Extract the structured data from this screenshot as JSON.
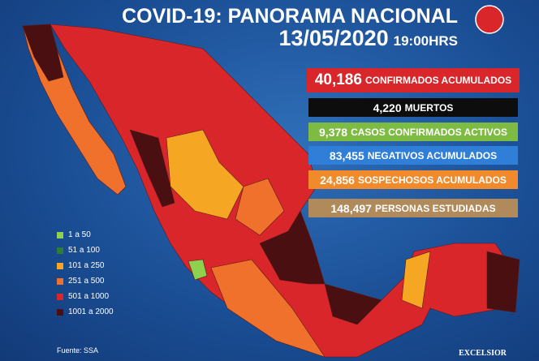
{
  "header": {
    "title": "COVID-19: PANORAMA NACIONAL",
    "date": "13/05/2020",
    "time": "19:00HRS"
  },
  "stats": [
    {
      "value": "40,186",
      "label": "CONFIRMADOS ACUMULADOS"
    },
    {
      "value": "4,220",
      "label": "MUERTOS"
    },
    {
      "value": "9,378",
      "label": "CASOS CONFIRMADOS ACTIVOS"
    },
    {
      "value": "83,455",
      "label": "NEGATIVOS ACUMULADOS"
    },
    {
      "value": "24,856",
      "label": "SOSPECHOSOS ACUMULADOS"
    },
    {
      "value": "148,497",
      "label": "PERSONAS ESTUDIADAS"
    }
  ],
  "legend": [
    {
      "label": "1 a 50",
      "color": "#8fd14f"
    },
    {
      "label": "51 a 100",
      "color": "#2e7d32"
    },
    {
      "label": "101 a 250",
      "color": "#f5a623"
    },
    {
      "label": "251 a 500",
      "color": "#f0712b"
    },
    {
      "label": "501 a 1000",
      "color": "#d8262b"
    },
    {
      "label": "1001 a 2000",
      "color": "#4a0f10"
    }
  ],
  "source": "Fuente: SSA",
  "logo": "EXCELSIOR"
}
